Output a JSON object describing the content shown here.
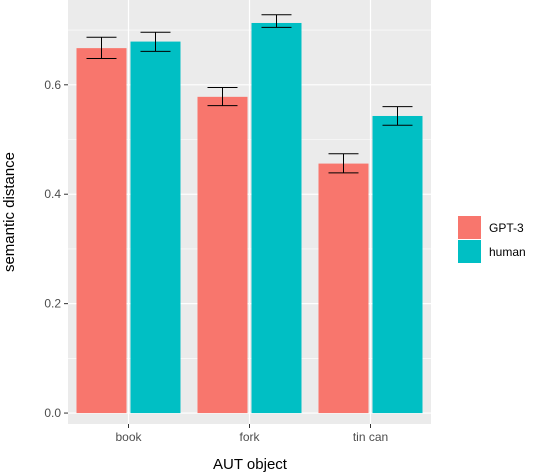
{
  "header_text": "",
  "chart_data": {
    "type": "bar",
    "title": "",
    "xlabel": "AUT object",
    "ylabel": "semantic distance",
    "categories": [
      "book",
      "fork",
      "tin can"
    ],
    "series": [
      {
        "name": "GPT-3",
        "color": "#f8766d",
        "values": [
          0.667,
          0.578,
          0.456
        ],
        "err_low": [
          0.648,
          0.562,
          0.439
        ],
        "err_high": [
          0.687,
          0.595,
          0.474
        ]
      },
      {
        "name": "human",
        "color": "#00bfc4",
        "values": [
          0.679,
          0.713,
          0.543
        ],
        "err_low": [
          0.661,
          0.705,
          0.526
        ],
        "err_high": [
          0.696,
          0.728,
          0.56
        ]
      }
    ],
    "ylim": [
      -0.02,
      0.755
    ],
    "yticks": [
      0.0,
      0.2,
      0.4,
      0.6
    ],
    "ytick_labels": [
      "0.0",
      "0.2",
      "0.4",
      "0.6"
    ],
    "grid": true,
    "panel_background": "#ebebeb",
    "legend_position": "right"
  }
}
